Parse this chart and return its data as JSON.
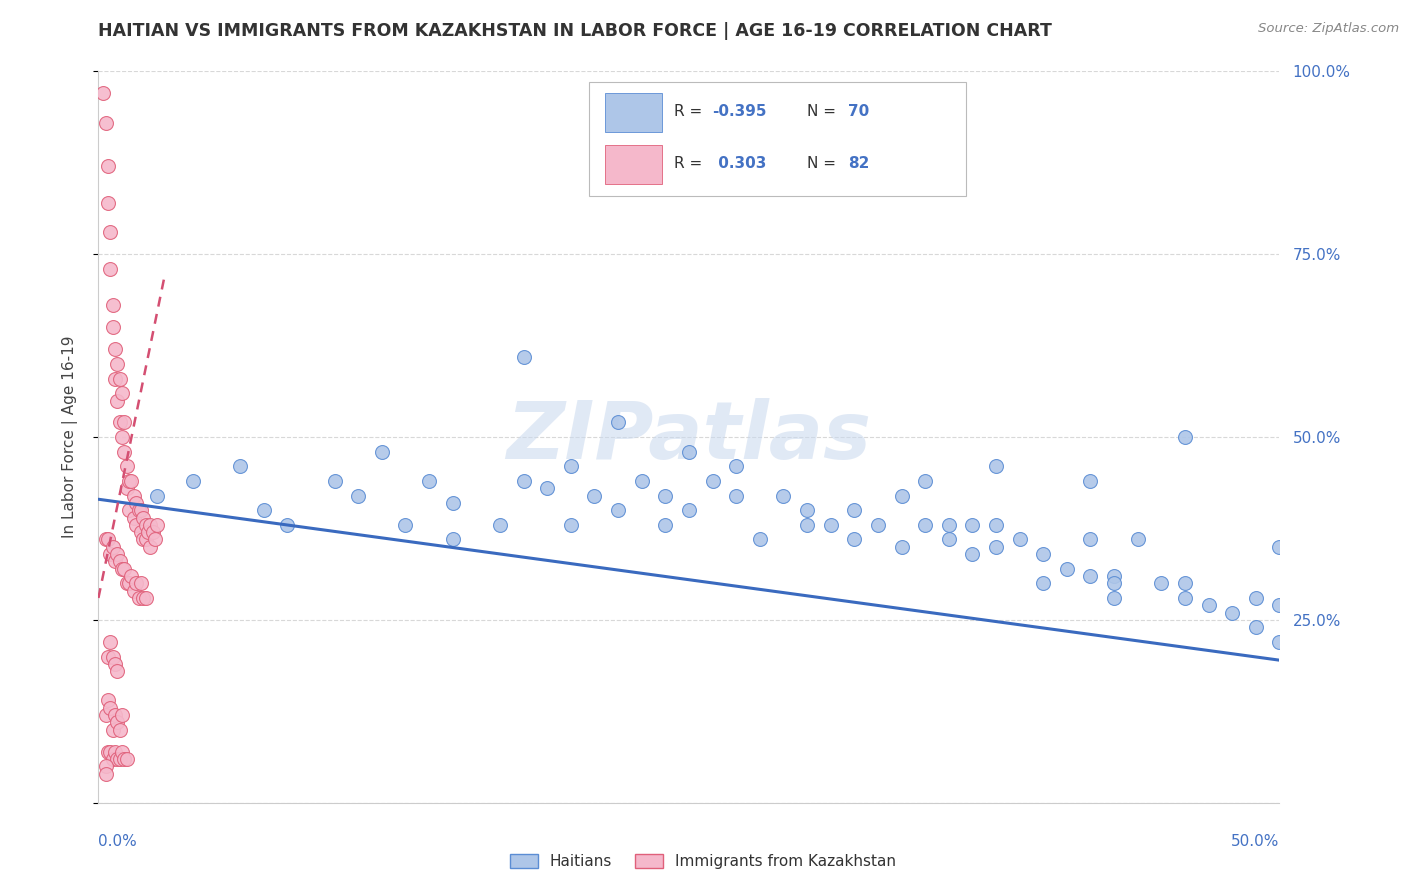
{
  "title": "HAITIAN VS IMMIGRANTS FROM KAZAKHSTAN IN LABOR FORCE | AGE 16-19 CORRELATION CHART",
  "source": "Source: ZipAtlas.com",
  "ylabel_label": "In Labor Force | Age 16-19",
  "legend_blue_r": "-0.395",
  "legend_blue_n": "70",
  "legend_pink_r": "0.303",
  "legend_pink_n": "82",
  "legend_label_blue": "Haitians",
  "legend_label_pink": "Immigrants from Kazakhstan",
  "watermark": "ZIPatlas",
  "blue_fill": "#aec6e8",
  "pink_fill": "#f5b8cb",
  "blue_edge": "#5b8dd4",
  "pink_edge": "#e0607a",
  "blue_line": "#3a6abf",
  "pink_line": "#d44f72",
  "title_color": "#333333",
  "axis_label_color": "#4472c4",
  "r_label_color": "#333333",
  "r_value_color": "#4472c4",
  "background_color": "#ffffff",
  "grid_color": "#d8d8d8",
  "xmin": 0.0,
  "xmax": 0.5,
  "ymin": 0.0,
  "ymax": 1.0,
  "blue_trend_x0": 0.0,
  "blue_trend_x1": 0.5,
  "blue_trend_y0": 0.415,
  "blue_trend_y1": 0.195,
  "pink_trend_x0": 0.0,
  "pink_trend_x1": 0.028,
  "pink_trend_y0": 0.28,
  "pink_trend_y1": 0.72,
  "blue_x": [
    0.025,
    0.04,
    0.06,
    0.07,
    0.08,
    0.1,
    0.11,
    0.12,
    0.13,
    0.14,
    0.15,
    0.15,
    0.17,
    0.18,
    0.19,
    0.2,
    0.2,
    0.21,
    0.22,
    0.23,
    0.24,
    0.24,
    0.25,
    0.26,
    0.27,
    0.27,
    0.28,
    0.29,
    0.3,
    0.3,
    0.31,
    0.32,
    0.32,
    0.33,
    0.34,
    0.34,
    0.35,
    0.36,
    0.36,
    0.37,
    0.37,
    0.38,
    0.38,
    0.39,
    0.4,
    0.4,
    0.41,
    0.42,
    0.42,
    0.43,
    0.43,
    0.44,
    0.45,
    0.46,
    0.46,
    0.47,
    0.48,
    0.49,
    0.49,
    0.5,
    0.18,
    0.22,
    0.25,
    0.35,
    0.38,
    0.42,
    0.43,
    0.46,
    0.5,
    0.5
  ],
  "blue_y": [
    0.42,
    0.44,
    0.46,
    0.4,
    0.38,
    0.44,
    0.42,
    0.48,
    0.38,
    0.44,
    0.41,
    0.36,
    0.38,
    0.44,
    0.43,
    0.46,
    0.38,
    0.42,
    0.4,
    0.44,
    0.42,
    0.38,
    0.4,
    0.44,
    0.42,
    0.46,
    0.36,
    0.42,
    0.4,
    0.38,
    0.38,
    0.4,
    0.36,
    0.38,
    0.42,
    0.35,
    0.38,
    0.38,
    0.36,
    0.38,
    0.34,
    0.38,
    0.35,
    0.36,
    0.34,
    0.3,
    0.32,
    0.36,
    0.31,
    0.28,
    0.31,
    0.36,
    0.3,
    0.28,
    0.3,
    0.27,
    0.26,
    0.28,
    0.24,
    0.22,
    0.61,
    0.52,
    0.48,
    0.44,
    0.46,
    0.44,
    0.3,
    0.5,
    0.35,
    0.27
  ],
  "pink_x": [
    0.002,
    0.003,
    0.004,
    0.004,
    0.005,
    0.005,
    0.006,
    0.006,
    0.007,
    0.007,
    0.008,
    0.008,
    0.009,
    0.009,
    0.01,
    0.01,
    0.011,
    0.011,
    0.012,
    0.012,
    0.013,
    0.013,
    0.014,
    0.015,
    0.015,
    0.016,
    0.016,
    0.017,
    0.018,
    0.018,
    0.019,
    0.019,
    0.02,
    0.02,
    0.021,
    0.022,
    0.022,
    0.023,
    0.024,
    0.025,
    0.003,
    0.004,
    0.005,
    0.006,
    0.007,
    0.008,
    0.009,
    0.01,
    0.011,
    0.012,
    0.013,
    0.014,
    0.015,
    0.016,
    0.017,
    0.018,
    0.019,
    0.02,
    0.003,
    0.004,
    0.005,
    0.006,
    0.007,
    0.008,
    0.009,
    0.01,
    0.004,
    0.005,
    0.006,
    0.007,
    0.008,
    0.009,
    0.01,
    0.011,
    0.012,
    0.004,
    0.005,
    0.006,
    0.007,
    0.008,
    0.003,
    0.003
  ],
  "pink_y": [
    0.97,
    0.93,
    0.87,
    0.82,
    0.78,
    0.73,
    0.68,
    0.65,
    0.62,
    0.58,
    0.6,
    0.55,
    0.52,
    0.58,
    0.5,
    0.56,
    0.52,
    0.48,
    0.46,
    0.43,
    0.44,
    0.4,
    0.44,
    0.42,
    0.39,
    0.41,
    0.38,
    0.4,
    0.4,
    0.37,
    0.39,
    0.36,
    0.38,
    0.36,
    0.37,
    0.38,
    0.35,
    0.37,
    0.36,
    0.38,
    0.36,
    0.36,
    0.34,
    0.35,
    0.33,
    0.34,
    0.33,
    0.32,
    0.32,
    0.3,
    0.3,
    0.31,
    0.29,
    0.3,
    0.28,
    0.3,
    0.28,
    0.28,
    0.12,
    0.14,
    0.13,
    0.1,
    0.12,
    0.11,
    0.1,
    0.12,
    0.07,
    0.07,
    0.06,
    0.07,
    0.06,
    0.06,
    0.07,
    0.06,
    0.06,
    0.2,
    0.22,
    0.2,
    0.19,
    0.18,
    0.05,
    0.04
  ]
}
